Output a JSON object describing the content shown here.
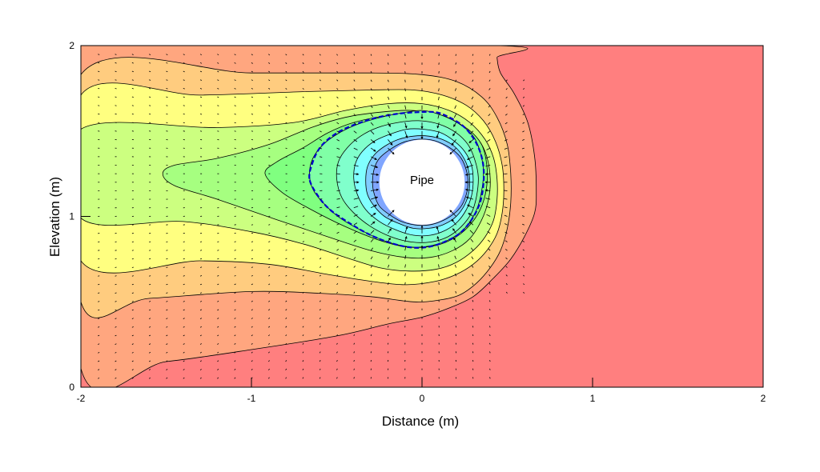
{
  "chart_data": {
    "type": "heatmap",
    "title": "",
    "xlabel": "Distance (m)",
    "ylabel": "Elevation (m)",
    "xlim": [
      -2,
      2
    ],
    "ylim": [
      0,
      2
    ],
    "x_ticks": [
      -2,
      -1,
      0,
      1,
      2
    ],
    "y_ticks": [
      0,
      1,
      2
    ],
    "x_tick_labels": [
      "-2",
      "-1",
      "0",
      "1",
      "2"
    ],
    "y_tick_labels": [
      "0",
      "1",
      "2"
    ],
    "grid": false,
    "legend": "none",
    "pipe": {
      "label": "Pipe",
      "center": [
        0,
        1.2
      ],
      "radius": 0.25
    },
    "contour_fill_colors": [
      "#ff7f7f",
      "#ffa67f",
      "#ffcc7f",
      "#ffff80",
      "#ccff80",
      "#a6ff80",
      "#80ff80",
      "#80ffa6",
      "#80ffcc",
      "#80ffff",
      "#80ccff",
      "#80a6ff",
      "#8080ff"
    ],
    "contours": [
      {
        "level": 1,
        "color": "#ffa67f",
        "points": [
          [
            -2,
            0.11
          ],
          [
            -1.5,
            0.15
          ],
          [
            -1.0,
            0.22
          ],
          [
            -0.5,
            0.3
          ],
          [
            -0.2,
            0.37
          ],
          [
            0.0,
            0.41
          ],
          [
            0.15,
            0.46
          ],
          [
            0.3,
            0.53
          ],
          [
            0.42,
            0.64
          ],
          [
            0.52,
            0.75
          ],
          [
            0.6,
            0.88
          ],
          [
            0.66,
            1.02
          ],
          [
            0.67,
            1.15
          ],
          [
            0.66,
            1.35
          ],
          [
            0.62,
            1.55
          ],
          [
            0.54,
            1.72
          ],
          [
            0.46,
            1.84
          ],
          [
            0.44,
            1.93
          ],
          [
            0.44,
            2.0
          ],
          [
            -2,
            2.0
          ]
        ]
      },
      {
        "level": 2,
        "color": "#ffcc7f",
        "points": [
          [
            -2,
            0.5
          ],
          [
            -1.6,
            0.52
          ],
          [
            -1.0,
            0.56
          ],
          [
            -0.6,
            0.55
          ],
          [
            -0.3,
            0.53
          ],
          [
            -0.05,
            0.5
          ],
          [
            0.1,
            0.51
          ],
          [
            0.22,
            0.54
          ],
          [
            0.32,
            0.61
          ],
          [
            0.4,
            0.7
          ],
          [
            0.46,
            0.8
          ],
          [
            0.5,
            0.93
          ],
          [
            0.52,
            1.08
          ],
          [
            0.52,
            1.25
          ],
          [
            0.5,
            1.42
          ],
          [
            0.44,
            1.58
          ],
          [
            0.35,
            1.7
          ],
          [
            0.2,
            1.79
          ],
          [
            0.0,
            1.83
          ],
          [
            -0.3,
            1.84
          ],
          [
            -1.0,
            1.84
          ],
          [
            -2,
            1.83
          ]
        ]
      },
      {
        "level": 3,
        "color": "#ffff80",
        "points": [
          [
            -2,
            0.74
          ],
          [
            -1.3,
            0.74
          ],
          [
            -0.9,
            0.72
          ],
          [
            -0.55,
            0.66
          ],
          [
            -0.3,
            0.62
          ],
          [
            -0.1,
            0.6
          ],
          [
            0.08,
            0.62
          ],
          [
            0.2,
            0.66
          ],
          [
            0.3,
            0.72
          ],
          [
            0.38,
            0.8
          ],
          [
            0.44,
            0.9
          ],
          [
            0.47,
            1.02
          ],
          [
            0.48,
            1.15
          ],
          [
            0.47,
            1.3
          ],
          [
            0.43,
            1.44
          ],
          [
            0.36,
            1.56
          ],
          [
            0.26,
            1.65
          ],
          [
            0.12,
            1.71
          ],
          [
            -0.05,
            1.74
          ],
          [
            -0.3,
            1.74
          ],
          [
            -0.7,
            1.73
          ],
          [
            -1.3,
            1.71
          ],
          [
            -2,
            1.71
          ]
        ]
      },
      {
        "level": 4,
        "color": "#ccff80",
        "points": [
          [
            -2,
            0.99
          ],
          [
            -1.4,
            0.97
          ],
          [
            -1.0,
            0.91
          ],
          [
            -0.7,
            0.84
          ],
          [
            -0.45,
            0.76
          ],
          [
            -0.25,
            0.7
          ],
          [
            -0.08,
            0.68
          ],
          [
            0.08,
            0.69
          ],
          [
            0.2,
            0.73
          ],
          [
            0.3,
            0.8
          ],
          [
            0.37,
            0.88
          ],
          [
            0.42,
            0.98
          ],
          [
            0.44,
            1.1
          ],
          [
            0.44,
            1.22
          ],
          [
            0.42,
            1.34
          ],
          [
            0.37,
            1.45
          ],
          [
            0.28,
            1.55
          ],
          [
            0.16,
            1.62
          ],
          [
            0.0,
            1.66
          ],
          [
            -0.2,
            1.66
          ],
          [
            -0.45,
            1.62
          ],
          [
            -0.75,
            1.55
          ],
          [
            -1.2,
            1.52
          ],
          [
            -2,
            1.51
          ]
        ]
      },
      {
        "level": 5,
        "color": "#a6ff80",
        "points": [
          [
            -1.52,
            1.25
          ],
          [
            -1.45,
            1.3
          ],
          [
            -1.2,
            1.34
          ],
          [
            -0.9,
            1.42
          ],
          [
            -0.65,
            1.52
          ],
          [
            -0.45,
            1.58
          ],
          [
            -0.25,
            1.61
          ],
          [
            -0.05,
            1.62
          ],
          [
            0.12,
            1.59
          ],
          [
            0.24,
            1.53
          ],
          [
            0.33,
            1.45
          ],
          [
            0.38,
            1.35
          ],
          [
            0.4,
            1.22
          ],
          [
            0.39,
            1.1
          ],
          [
            0.35,
            0.98
          ],
          [
            0.28,
            0.87
          ],
          [
            0.18,
            0.8
          ],
          [
            0.05,
            0.76
          ],
          [
            -0.1,
            0.76
          ],
          [
            -0.3,
            0.8
          ],
          [
            -0.55,
            0.88
          ],
          [
            -0.85,
            0.98
          ],
          [
            -1.2,
            1.1
          ],
          [
            -1.45,
            1.18
          ]
        ]
      },
      {
        "level": 6,
        "color": "#80ff80",
        "points": [
          [
            -0.92,
            1.25
          ],
          [
            -0.85,
            1.32
          ],
          [
            -0.7,
            1.4
          ],
          [
            -0.55,
            1.49
          ],
          [
            -0.4,
            1.55
          ],
          [
            -0.2,
            1.59
          ],
          [
            0.0,
            1.6
          ],
          [
            0.15,
            1.57
          ],
          [
            0.27,
            1.51
          ],
          [
            0.35,
            1.42
          ],
          [
            0.38,
            1.3
          ],
          [
            0.38,
            1.18
          ],
          [
            0.35,
            1.06
          ],
          [
            0.29,
            0.96
          ],
          [
            0.2,
            0.88
          ],
          [
            0.08,
            0.83
          ],
          [
            -0.08,
            0.82
          ],
          [
            -0.25,
            0.86
          ],
          [
            -0.45,
            0.94
          ],
          [
            -0.65,
            1.04
          ],
          [
            -0.82,
            1.14
          ]
        ]
      },
      {
        "level": 7,
        "color": "#80ffa6",
        "points": [
          [
            -0.66,
            1.25
          ],
          [
            -0.64,
            1.34
          ],
          [
            -0.58,
            1.42
          ],
          [
            -0.5,
            1.48
          ],
          [
            -0.4,
            1.53
          ],
          [
            -0.28,
            1.57
          ],
          [
            -0.15,
            1.6
          ],
          [
            0.0,
            1.62
          ],
          [
            0.12,
            1.59
          ],
          [
            0.22,
            1.54
          ],
          [
            0.3,
            1.47
          ],
          [
            0.34,
            1.38
          ],
          [
            0.36,
            1.27
          ],
          [
            0.35,
            1.15
          ],
          [
            0.32,
            1.04
          ],
          [
            0.26,
            0.94
          ],
          [
            0.17,
            0.87
          ],
          [
            0.06,
            0.83
          ],
          [
            -0.06,
            0.82
          ],
          [
            -0.2,
            0.85
          ],
          [
            -0.34,
            0.91
          ],
          [
            -0.48,
            0.99
          ],
          [
            -0.58,
            1.08
          ],
          [
            -0.64,
            1.16
          ]
        ]
      },
      {
        "level": 8,
        "color": "#80ffcc",
        "points": [
          [
            -0.5,
            1.22
          ],
          [
            -0.49,
            1.32
          ],
          [
            -0.44,
            1.4
          ],
          [
            -0.36,
            1.47
          ],
          [
            -0.26,
            1.52
          ],
          [
            -0.14,
            1.55
          ],
          [
            -0.02,
            1.56
          ],
          [
            0.1,
            1.54
          ],
          [
            0.2,
            1.49
          ],
          [
            0.27,
            1.42
          ],
          [
            0.31,
            1.33
          ],
          [
            0.33,
            1.23
          ],
          [
            0.32,
            1.12
          ],
          [
            0.29,
            1.02
          ],
          [
            0.23,
            0.94
          ],
          [
            0.15,
            0.88
          ],
          [
            0.05,
            0.85
          ],
          [
            -0.06,
            0.85
          ],
          [
            -0.18,
            0.88
          ],
          [
            -0.3,
            0.94
          ],
          [
            -0.4,
            1.02
          ],
          [
            -0.47,
            1.11
          ]
        ]
      },
      {
        "level": 9,
        "color": "#80ffff",
        "points": [
          [
            -0.4,
            1.22
          ],
          [
            -0.39,
            1.31
          ],
          [
            -0.35,
            1.38
          ],
          [
            -0.28,
            1.44
          ],
          [
            -0.19,
            1.48
          ],
          [
            -0.09,
            1.51
          ],
          [
            0.01,
            1.51
          ],
          [
            0.11,
            1.49
          ],
          [
            0.19,
            1.44
          ],
          [
            0.25,
            1.38
          ],
          [
            0.29,
            1.3
          ],
          [
            0.3,
            1.21
          ],
          [
            0.29,
            1.12
          ],
          [
            0.26,
            1.04
          ],
          [
            0.21,
            0.97
          ],
          [
            0.14,
            0.92
          ],
          [
            0.05,
            0.89
          ],
          [
            -0.05,
            0.89
          ],
          [
            -0.15,
            0.92
          ],
          [
            -0.25,
            0.97
          ],
          [
            -0.33,
            1.04
          ],
          [
            -0.38,
            1.13
          ]
        ]
      },
      {
        "level": 10,
        "color": "#80ccff",
        "points": [
          [
            -0.33,
            1.21
          ],
          [
            -0.32,
            1.29
          ],
          [
            -0.28,
            1.36
          ],
          [
            -0.22,
            1.41
          ],
          [
            -0.14,
            1.45
          ],
          [
            -0.05,
            1.47
          ],
          [
            0.04,
            1.47
          ],
          [
            0.12,
            1.45
          ],
          [
            0.19,
            1.41
          ],
          [
            0.24,
            1.35
          ],
          [
            0.27,
            1.28
          ],
          [
            0.28,
            1.2
          ],
          [
            0.27,
            1.12
          ],
          [
            0.24,
            1.05
          ],
          [
            0.19,
            0.99
          ],
          [
            0.12,
            0.95
          ],
          [
            0.04,
            0.93
          ],
          [
            -0.05,
            0.93
          ],
          [
            -0.14,
            0.96
          ],
          [
            -0.22,
            1.0
          ],
          [
            -0.28,
            1.06
          ],
          [
            -0.32,
            1.13
          ]
        ]
      },
      {
        "level": 11,
        "color": "#80a6ff",
        "points": [
          [
            -0.29,
            1.2
          ],
          [
            -0.28,
            1.28
          ],
          [
            -0.25,
            1.34
          ],
          [
            -0.19,
            1.39
          ],
          [
            -0.12,
            1.43
          ],
          [
            -0.04,
            1.45
          ],
          [
            0.04,
            1.45
          ],
          [
            0.11,
            1.43
          ],
          [
            0.18,
            1.39
          ],
          [
            0.23,
            1.34
          ],
          [
            0.26,
            1.27
          ],
          [
            0.27,
            1.2
          ],
          [
            0.26,
            1.13
          ],
          [
            0.23,
            1.06
          ],
          [
            0.18,
            1.01
          ],
          [
            0.11,
            0.97
          ],
          [
            0.04,
            0.95
          ],
          [
            -0.04,
            0.95
          ],
          [
            -0.12,
            0.97
          ],
          [
            -0.19,
            1.01
          ],
          [
            -0.25,
            1.06
          ],
          [
            -0.28,
            1.13
          ]
        ]
      }
    ],
    "dashed_contour": {
      "color": "#0000cc",
      "points": [
        [
          -0.66,
          1.22
        ],
        [
          -0.64,
          1.32
        ],
        [
          -0.6,
          1.4
        ],
        [
          -0.54,
          1.46
        ],
        [
          -0.46,
          1.51
        ],
        [
          -0.36,
          1.55
        ],
        [
          -0.26,
          1.58
        ],
        [
          -0.15,
          1.6
        ],
        [
          -0.03,
          1.61
        ],
        [
          0.08,
          1.61
        ],
        [
          0.16,
          1.58
        ],
        [
          0.24,
          1.53
        ],
        [
          0.3,
          1.46
        ],
        [
          0.34,
          1.38
        ],
        [
          0.36,
          1.29
        ],
        [
          0.36,
          1.19
        ],
        [
          0.34,
          1.08
        ],
        [
          0.29,
          0.98
        ],
        [
          0.22,
          0.9
        ],
        [
          0.13,
          0.85
        ],
        [
          0.03,
          0.82
        ],
        [
          -0.08,
          0.82
        ],
        [
          -0.2,
          0.85
        ],
        [
          -0.32,
          0.9
        ],
        [
          -0.44,
          0.97
        ],
        [
          -0.54,
          1.04
        ],
        [
          -0.61,
          1.12
        ]
      ]
    },
    "flux_vectors": {
      "color": "#000000",
      "grid_spacing": [
        0.1,
        0.05
      ]
    }
  }
}
